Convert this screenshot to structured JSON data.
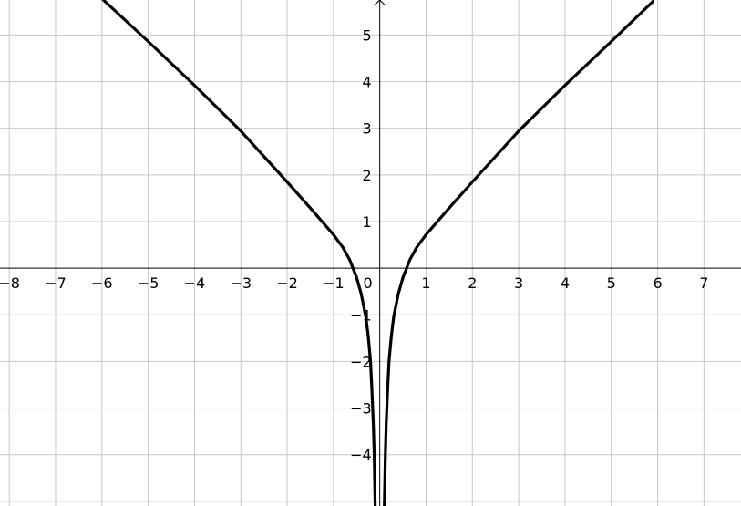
{
  "chart_data": {
    "type": "line",
    "title": "",
    "xlabel": "",
    "ylabel": "",
    "xlim": [
      -8.2,
      7.8
    ],
    "ylim": [
      -5.1,
      5.75
    ],
    "grid": true,
    "x_ticks": [
      "−8",
      "−7",
      "−6",
      "−5",
      "−4",
      "−3",
      "−2",
      "−1",
      "0",
      "1",
      "2",
      "3",
      "4",
      "5",
      "6",
      "7"
    ],
    "x_tick_values": [
      -8,
      -7,
      -6,
      -5,
      -4,
      -3,
      -2,
      -1,
      0,
      1,
      2,
      3,
      4,
      5,
      6,
      7
    ],
    "y_ticks": [
      "5",
      "4",
      "3",
      "2",
      "1",
      "−1",
      "−2",
      "−3",
      "−4"
    ],
    "y_tick_values": [
      5,
      4,
      3,
      2,
      1,
      -1,
      -2,
      -3,
      -4
    ],
    "series": [
      {
        "color": "#000000",
        "points": [
          [
            -6.0,
            5.78
          ],
          [
            -5.0,
            4.86
          ],
          [
            -4.0,
            3.92
          ],
          [
            -3.0,
            2.94
          ],
          [
            -2.0,
            1.85
          ],
          [
            -1.5,
            1.29
          ],
          [
            -1.0,
            0.72
          ],
          [
            -0.8,
            0.45
          ],
          [
            -0.65,
            0.18
          ],
          [
            -0.5,
            -0.2
          ],
          [
            -0.4,
            -0.55
          ],
          [
            -0.3,
            -1.05
          ],
          [
            -0.25,
            -1.45
          ],
          [
            -0.2,
            -2.0
          ],
          [
            -0.17,
            -2.6
          ],
          [
            -0.14,
            -3.3
          ],
          [
            -0.12,
            -4.0
          ],
          [
            -0.1,
            -5.1
          ]
        ]
      },
      {
        "color": "#000000",
        "points": [
          [
            0.1,
            -5.1
          ],
          [
            0.12,
            -4.0
          ],
          [
            0.14,
            -3.3
          ],
          [
            0.17,
            -2.6
          ],
          [
            0.2,
            -2.0
          ],
          [
            0.25,
            -1.45
          ],
          [
            0.3,
            -1.05
          ],
          [
            0.4,
            -0.55
          ],
          [
            0.5,
            -0.2
          ],
          [
            0.65,
            0.18
          ],
          [
            0.8,
            0.45
          ],
          [
            1.0,
            0.72
          ],
          [
            1.5,
            1.29
          ],
          [
            2.0,
            1.85
          ],
          [
            3.0,
            2.94
          ],
          [
            4.0,
            3.92
          ],
          [
            5.0,
            4.86
          ],
          [
            5.9,
            5.72
          ]
        ]
      }
    ]
  }
}
